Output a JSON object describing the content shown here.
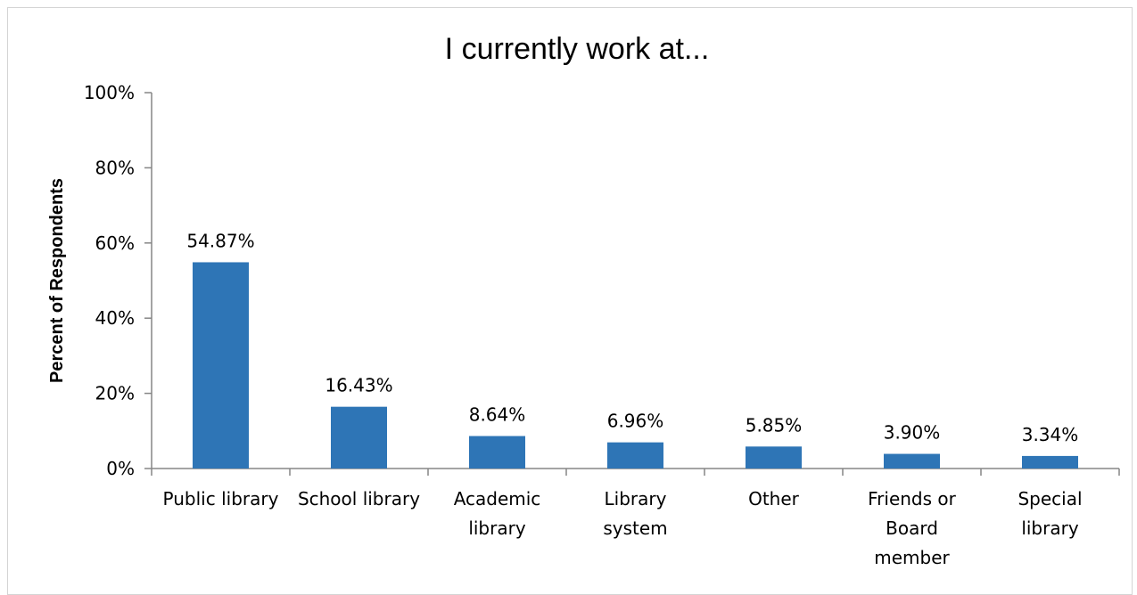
{
  "chart_data": {
    "type": "bar",
    "title": "I currently work at...",
    "xlabel": "",
    "ylabel": "Percent of Respondents",
    "categories": [
      [
        "Public library"
      ],
      [
        "School library"
      ],
      [
        "Academic",
        "library"
      ],
      [
        "Library",
        "system"
      ],
      [
        "Other"
      ],
      [
        "Friends or",
        "Board",
        "member"
      ],
      [
        "Special",
        "library"
      ]
    ],
    "values": [
      54.87,
      16.43,
      8.64,
      6.96,
      5.85,
      3.9,
      3.34
    ],
    "data_labels": [
      "54.87%",
      "16.43%",
      "8.64%",
      "6.96%",
      "5.85%",
      "3.90%",
      "3.34%"
    ],
    "ylim": [
      0,
      100
    ],
    "yticks": [
      0,
      20,
      40,
      60,
      80,
      100
    ],
    "ytick_labels": [
      "0%",
      "20%",
      "40%",
      "60%",
      "80%",
      "100%"
    ],
    "grid": false,
    "legend": "none",
    "colors": {
      "bar": "#2e75b6",
      "axis": "#868686",
      "border": "#d4d4d4"
    }
  }
}
